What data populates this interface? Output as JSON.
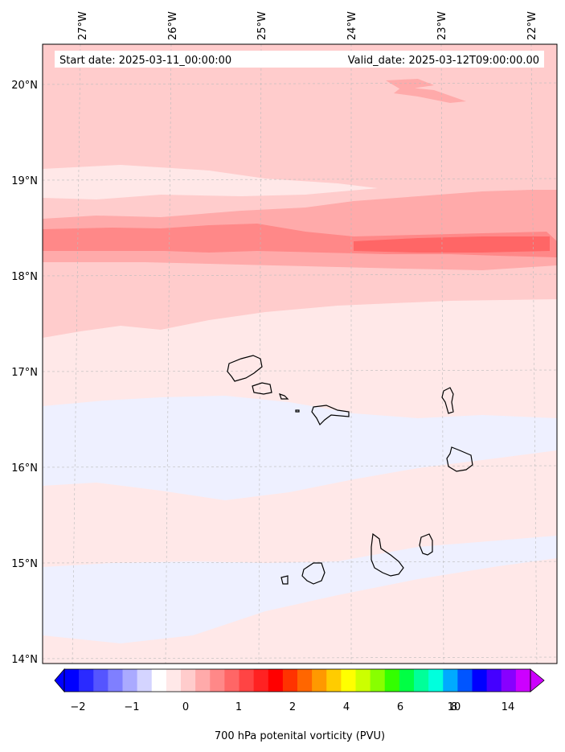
{
  "header": {
    "start_date": "Start date: 2025-03-11_00:00:00",
    "valid_date": "Valid_date: 2025-03-12T09:00:00.00"
  },
  "axes": {
    "lon_labels": [
      "27°W",
      "26°W",
      "25°W",
      "24°W",
      "23°W",
      "22°W"
    ],
    "lat_labels": [
      "20°N",
      "19°N",
      "18°N",
      "17°N",
      "16°N",
      "15°N",
      "14°N"
    ]
  },
  "colorbar": {
    "tick_labels": [
      "−2",
      "−1",
      "0",
      "1",
      "2",
      "4",
      "6",
      "8",
      "10",
      "14"
    ],
    "label": "700 hPa potenital vorticity (PVU)",
    "colors": [
      "#0000ff",
      "#2a2aff",
      "#5555ff",
      "#7f7fff",
      "#aaaaff",
      "#d4d4ff",
      "#ffffff",
      "#ffe8e8",
      "#ffcccc",
      "#ffaaaa",
      "#ff8888",
      "#ff6666",
      "#ff4444",
      "#ff2222",
      "#ff0000",
      "#ff3300",
      "#ff6600",
      "#ff9900",
      "#ffcc00",
      "#ffff00",
      "#ccff00",
      "#88ff00",
      "#33ff00",
      "#00ff44",
      "#00ff99",
      "#00ffdd",
      "#00aaff",
      "#0055ff",
      "#0000ff",
      "#4400ff",
      "#8800ff",
      "#cc00ff"
    ]
  },
  "colors": {
    "bg_light_pink": "#ffe8e8",
    "pink": "#ffcccc",
    "mid_pink": "#ffaaaa",
    "deep_pink": "#ff8888",
    "light_blue": "#eef0ff",
    "coast": "#000000"
  }
}
